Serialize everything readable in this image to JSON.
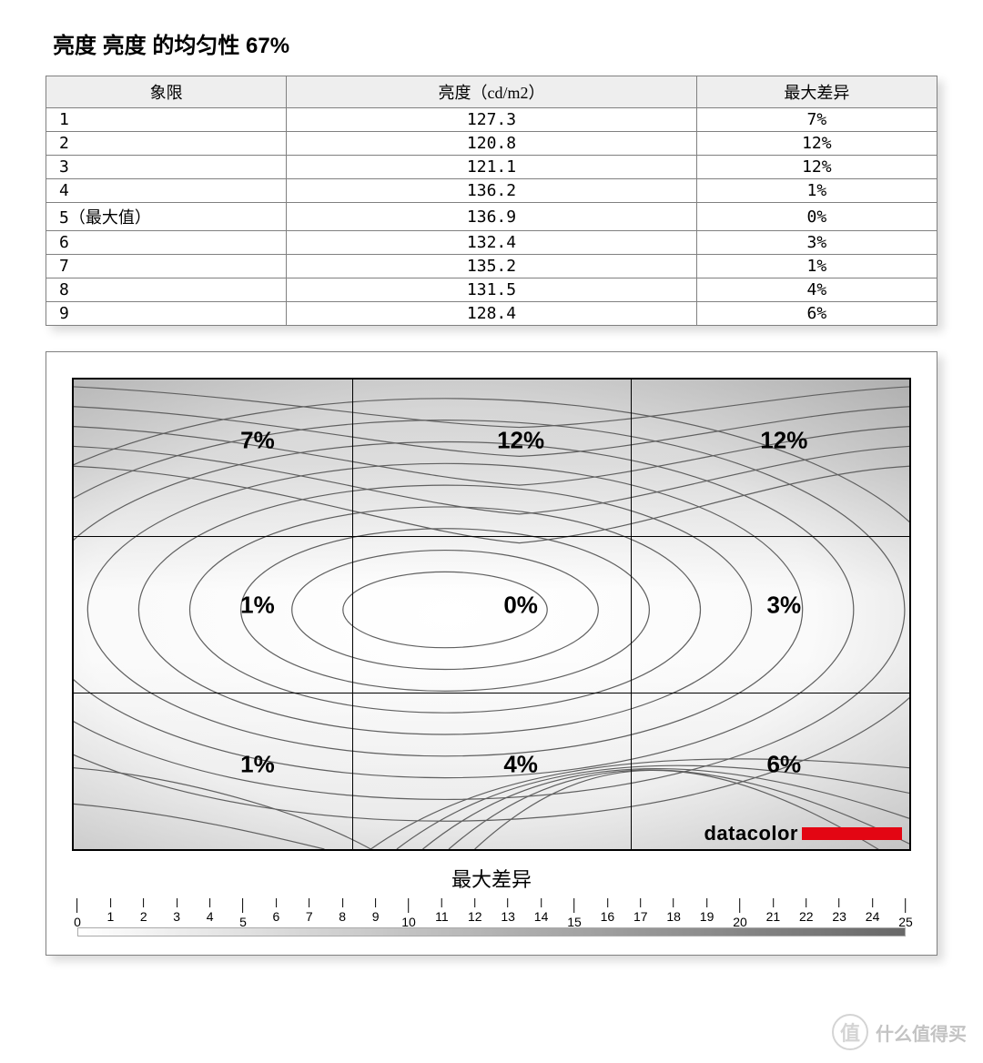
{
  "title": "亮度 亮度 的均匀性 67%",
  "table": {
    "columns": [
      "象限",
      "亮度（cd/m2）",
      "最大差异"
    ],
    "rows": [
      [
        "1",
        "127.3",
        "7%"
      ],
      [
        "2",
        "120.8",
        "12%"
      ],
      [
        "3",
        "121.1",
        "12%"
      ],
      [
        "4",
        "136.2",
        "1%"
      ],
      [
        "5（最大值）",
        "136.9",
        "0%"
      ],
      [
        "6",
        "132.4",
        "3%"
      ],
      [
        "7",
        "135.2",
        "1%"
      ],
      [
        "8",
        "131.5",
        "4%"
      ],
      [
        "9",
        "128.4",
        "6%"
      ]
    ],
    "header_bg": "#eeeeee",
    "border_color": "#808080",
    "col_widths_pct": [
      27,
      46,
      27
    ]
  },
  "contour_chart": {
    "type": "contour-heatmap",
    "grid": {
      "cols": 3,
      "rows": 3
    },
    "cell_labels": [
      {
        "row": 0,
        "col": 0,
        "text": "7%"
      },
      {
        "row": 0,
        "col": 1,
        "text": "12%"
      },
      {
        "row": 0,
        "col": 2,
        "text": "12%"
      },
      {
        "row": 1,
        "col": 0,
        "text": "1%"
      },
      {
        "row": 1,
        "col": 1,
        "text": "0%"
      },
      {
        "row": 1,
        "col": 2,
        "text": "3%"
      },
      {
        "row": 2,
        "col": 0,
        "text": "1%"
      },
      {
        "row": 2,
        "col": 1,
        "text": "4%"
      },
      {
        "row": 2,
        "col": 2,
        "text": "6%"
      }
    ],
    "label_fontsize": 26,
    "label_fontweight": "bold",
    "contour_line_color": "#606060",
    "contour_line_width": 1.2,
    "gradient_top_color": "#a8a8a8",
    "gradient_mid_color": "#ffffff",
    "gradient_bottom_color": "#e8e8e8",
    "border_color": "#000000",
    "cell_label_y_offsets": [
      0.13,
      0.48,
      0.82
    ],
    "cell_label_x_offsets": [
      0.22,
      0.535,
      0.85
    ],
    "brand_text": "datacolor",
    "brand_color": "#e30613"
  },
  "scale": {
    "title": "最大差异",
    "min": 0,
    "max": 25,
    "step": 1,
    "gradient_from": "#ffffff",
    "gradient_to": "#686868",
    "label_fontsize": 14
  },
  "watermark": {
    "icon_text": "值",
    "text": "什么值得买"
  }
}
